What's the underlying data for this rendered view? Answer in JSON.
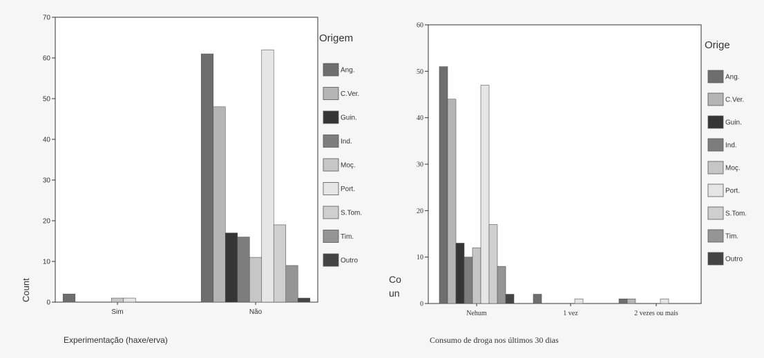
{
  "chart_data": [
    {
      "type": "bar",
      "xlabel": "Experimentação (haxe/erva)",
      "ylabel": "Count",
      "ylim": [
        0,
        70
      ],
      "yticks": [
        0,
        10,
        20,
        30,
        40,
        50,
        60,
        70
      ],
      "categories": [
        "Sim",
        "Não"
      ],
      "legend_title": "Origem",
      "legend_placement": "right",
      "series": [
        {
          "name": "Ang.",
          "color": "#6e6e6e",
          "values": [
            2,
            61
          ]
        },
        {
          "name": "C.Ver.",
          "color": "#b5b5b5",
          "values": [
            0,
            48
          ]
        },
        {
          "name": "Guin.",
          "color": "#353535",
          "values": [
            0,
            17
          ]
        },
        {
          "name": "Ind.",
          "color": "#7d7d7d",
          "values": [
            0,
            16
          ]
        },
        {
          "name": "Moç.",
          "color": "#c6c6c6",
          "values": [
            1,
            11
          ]
        },
        {
          "name": "Port.",
          "color": "#e6e6e6",
          "values": [
            1,
            62
          ]
        },
        {
          "name": "S.Tom.",
          "color": "#cfcfcf",
          "values": [
            0,
            19
          ]
        },
        {
          "name": "Tim.",
          "color": "#959595",
          "values": [
            0,
            9
          ]
        },
        {
          "name": "Outro",
          "color": "#444444",
          "values": [
            0,
            1
          ]
        }
      ]
    },
    {
      "type": "bar",
      "xlabel": "Consumo de droga nos últimos 30 dias",
      "ylabel": "Co unt",
      "ylim": [
        0,
        60
      ],
      "yticks": [
        0,
        10,
        20,
        30,
        40,
        50,
        60
      ],
      "categories": [
        "Nehum",
        "1 vez",
        "2 vezes ou mais"
      ],
      "legend_title": "Orige",
      "legend_placement": "right",
      "series": [
        {
          "name": "Ang.",
          "color": "#6e6e6e",
          "values": [
            51,
            2,
            1
          ]
        },
        {
          "name": "C.Ver.",
          "color": "#b5b5b5",
          "values": [
            44,
            0,
            1
          ]
        },
        {
          "name": "Guin.",
          "color": "#353535",
          "values": [
            13,
            0,
            0
          ]
        },
        {
          "name": "Ind.",
          "color": "#7d7d7d",
          "values": [
            10,
            0,
            0
          ]
        },
        {
          "name": "Moç.",
          "color": "#c6c6c6",
          "values": [
            12,
            0,
            0
          ]
        },
        {
          "name": "Port.",
          "color": "#e6e6e6",
          "values": [
            47,
            1,
            1
          ]
        },
        {
          "name": "S.Tom.",
          "color": "#cfcfcf",
          "values": [
            17,
            0,
            0
          ]
        },
        {
          "name": "Tim.",
          "color": "#959595",
          "values": [
            8,
            0,
            0
          ]
        },
        {
          "name": "Outro",
          "color": "#444444",
          "values": [
            2,
            0,
            0
          ]
        }
      ]
    }
  ]
}
